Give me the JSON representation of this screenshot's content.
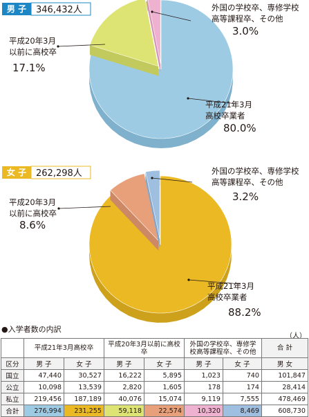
{
  "charts": [
    {
      "gender_tag": "男 子",
      "total": "346,432人",
      "slices": [
        {
          "label_lines": [
            "平成21年3月",
            "高校卒業者"
          ],
          "value": 80.0,
          "pct": "80.0%",
          "color": "#9dcbe4",
          "side": "#7fb0cc"
        },
        {
          "label_lines": [
            "平成20年3月",
            "以前に高校卒"
          ],
          "value": 17.1,
          "pct": "17.1%",
          "color": "#dde473",
          "side": "#c3ca5d"
        },
        {
          "label_lines": [
            "外国の学校卒、専修学校",
            "高等課程卒、その他"
          ],
          "value": 3.0,
          "pct": "3.0%",
          "color": "#eeb1d0",
          "side": "#d796b6"
        }
      ],
      "accent": "#1d87c6"
    },
    {
      "gender_tag": "女 子",
      "total": "262,298人",
      "slices": [
        {
          "label_lines": [
            "平成21年3月",
            "高校卒業者"
          ],
          "value": 88.2,
          "pct": "88.2%",
          "color": "#eab923",
          "side": "#cda11b"
        },
        {
          "label_lines": [
            "平成20年3月",
            "以前に高校卒"
          ],
          "value": 8.6,
          "pct": "8.6%",
          "color": "#e8a07a",
          "side": "#cd8965"
        },
        {
          "label_lines": [
            "外国の学校卒、専修学校",
            "高等課程卒、その他"
          ],
          "value": 3.2,
          "pct": "3.2%",
          "color": "#9fbfe0",
          "side": "#84a6c9"
        }
      ],
      "accent": "#eab923"
    }
  ],
  "table": {
    "caption": "●入学者数の内訳",
    "unit": "（人）",
    "group_headers": [
      "平成21年3月高校卒",
      "平成20年3月以前に高校卒",
      "外国の学校卒、専修学校高等課程卒、その他",
      "合 計"
    ],
    "sub_headers": [
      "区分",
      "男 子",
      "女 子",
      "男 子",
      "女 子",
      "男 子",
      "女 子",
      "男 女"
    ],
    "rows": [
      {
        "label": "国立",
        "values": [
          "47,440",
          "30,527",
          "16,222",
          "5,895",
          "1,023",
          "740",
          "101,847"
        ]
      },
      {
        "label": "公立",
        "values": [
          "10,098",
          "13,539",
          "2,820",
          "1,605",
          "178",
          "174",
          "28,414"
        ]
      },
      {
        "label": "私立",
        "values": [
          "219,456",
          "187,189",
          "40,076",
          "15,074",
          "9,119",
          "7,555",
          "478,469"
        ]
      },
      {
        "label": "合計",
        "values": [
          "276,994",
          "231,255",
          "59,118",
          "22,574",
          "10,320",
          "8,469",
          "608,730"
        ]
      }
    ],
    "sum_colors": [
      "#9dcbe4",
      "#eab923",
      "#dde473",
      "#e8a07a",
      "#eeb1d0",
      "#9fbfe0",
      "#ffffff"
    ]
  },
  "chart_data": [
    {
      "type": "pie",
      "title": "男 子 346,432人",
      "categories": [
        "平成21年3月高校卒業者",
        "平成20年3月以前に高校卒",
        "外国の学校卒、専修学校高等課程卒、その他"
      ],
      "values": [
        80.0,
        17.1,
        3.0
      ]
    },
    {
      "type": "pie",
      "title": "女 子 262,298人",
      "categories": [
        "平成21年3月高校卒業者",
        "平成20年3月以前に高校卒",
        "外国の学校卒、専修学校高等課程卒、その他"
      ],
      "values": [
        88.2,
        8.6,
        3.2
      ]
    },
    {
      "type": "table",
      "title": "●入学者数の内訳",
      "columns": [
        "区分",
        "平成21年3月高校卒 男子",
        "平成21年3月高校卒 女子",
        "平成20年3月以前に高校卒 男子",
        "平成20年3月以前に高校卒 女子",
        "外国の学校卒、専修学校高等課程卒、その他 男子",
        "外国の学校卒、専修学校高等課程卒、その他 女子",
        "合計 男女"
      ],
      "rows": [
        [
          "国立",
          47440,
          30527,
          16222,
          5895,
          1023,
          740,
          101847
        ],
        [
          "公立",
          10098,
          13539,
          2820,
          1605,
          178,
          174,
          28414
        ],
        [
          "私立",
          219456,
          187189,
          40076,
          15074,
          9119,
          7555,
          478469
        ],
        [
          "合計",
          276994,
          231255,
          59118,
          22574,
          10320,
          8469,
          608730
        ]
      ]
    }
  ]
}
